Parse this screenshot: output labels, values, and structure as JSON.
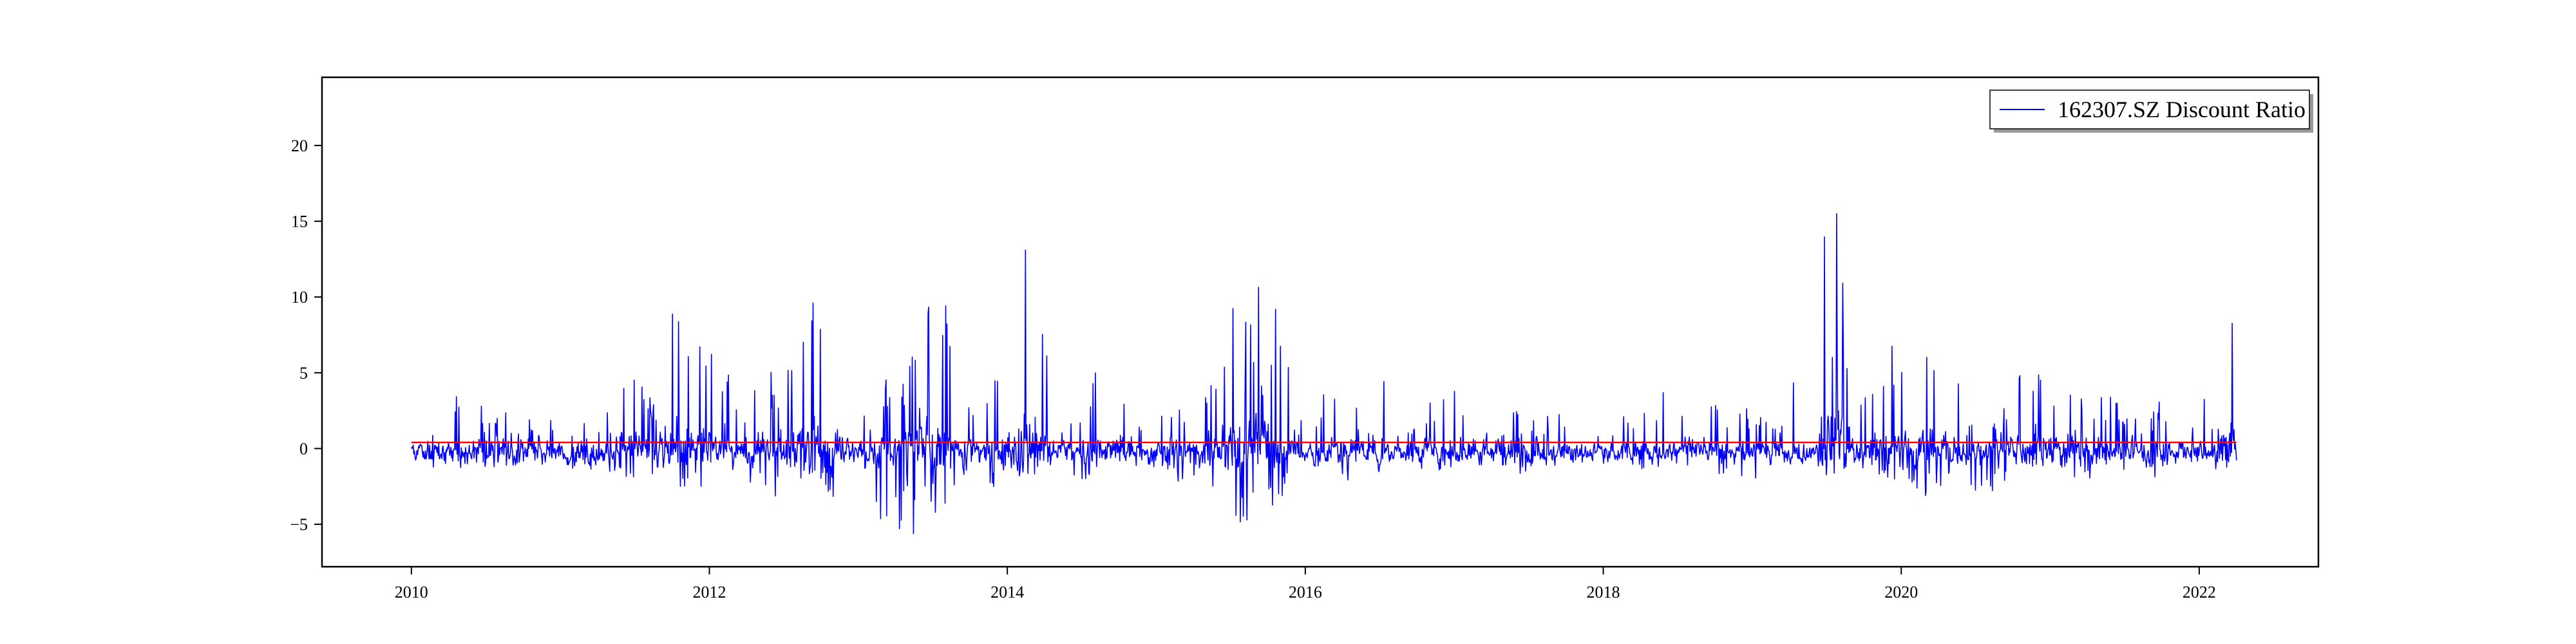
{
  "chart_data": {
    "type": "line",
    "title": "",
    "xlabel": "",
    "ylabel": "",
    "x_range": [
      2009.4,
      2022.8
    ],
    "ylim": [
      -7.8,
      24.5
    ],
    "x_ticks": [
      2010,
      2012,
      2014,
      2016,
      2018,
      2020,
      2022
    ],
    "x_tick_labels": [
      "2010",
      "2012",
      "2014",
      "2016",
      "2018",
      "2020",
      "2022"
    ],
    "y_ticks": [
      -5,
      0,
      5,
      10,
      15,
      20
    ],
    "y_tick_labels": [
      "−5",
      "0",
      "5",
      "10",
      "15",
      "20"
    ],
    "legend": {
      "position": "top-right",
      "entries": [
        "162307.SZ Discount Ratio"
      ]
    },
    "reference_line": {
      "value": 0.4,
      "x_start": 2010.0,
      "x_end": 2022.25,
      "color": "#ff0000"
    },
    "series": [
      {
        "name": "162307.SZ Discount Ratio",
        "color": "#0000ff",
        "x_start": 2010.0,
        "x_end": 2022.25,
        "points": 3000,
        "seed": 162307,
        "baseline": -0.3,
        "noise": 0.6,
        "bursts": [
          {
            "x": 2010.35,
            "width": 0.25,
            "amp": 4.5,
            "dip": -0.6
          },
          {
            "x": 2010.65,
            "width": 0.2,
            "amp": 3.5,
            "dip": -0.5
          },
          {
            "x": 2011.1,
            "width": 0.3,
            "amp": 2.5,
            "dip": -1.0
          },
          {
            "x": 2011.5,
            "width": 0.25,
            "amp": 5.0,
            "dip": -2.0
          },
          {
            "x": 2011.9,
            "width": 0.25,
            "amp": 11.5,
            "dip": -2.5
          },
          {
            "x": 2012.4,
            "width": 0.2,
            "amp": 5.5,
            "dip": -2.5
          },
          {
            "x": 2012.65,
            "width": 0.2,
            "amp": 11.5,
            "dip": -2.0
          },
          {
            "x": 2012.9,
            "width": 0.15,
            "amp": 7.0,
            "dip": -4.0
          },
          {
            "x": 2013.25,
            "width": 0.2,
            "amp": 5.0,
            "dip": -6.0
          },
          {
            "x": 2013.5,
            "width": 0.2,
            "amp": 11.5,
            "dip": -4.0
          },
          {
            "x": 2013.9,
            "width": 0.2,
            "amp": 5.5,
            "dip": -2.0
          },
          {
            "x": 2014.15,
            "width": 0.15,
            "amp": 15.5,
            "dip": -1.5
          },
          {
            "x": 2014.6,
            "width": 0.2,
            "amp": 5.0,
            "dip": -1.5
          },
          {
            "x": 2015.1,
            "width": 0.3,
            "amp": 3.0,
            "dip": -1.5
          },
          {
            "x": 2015.55,
            "width": 0.2,
            "amp": 12.0,
            "dip": -4.5
          },
          {
            "x": 2015.75,
            "width": 0.15,
            "amp": 13.5,
            "dip": -4.0
          },
          {
            "x": 2016.2,
            "width": 0.3,
            "amp": 4.0,
            "dip": -1.5
          },
          {
            "x": 2017.0,
            "width": 0.3,
            "amp": 4.5,
            "dip": -1.0
          },
          {
            "x": 2017.5,
            "width": 0.3,
            "amp": 3.5,
            "dip": -1.0
          },
          {
            "x": 2018.3,
            "width": 0.3,
            "amp": 2.5,
            "dip": -1.0
          },
          {
            "x": 2018.9,
            "width": 0.3,
            "amp": 3.5,
            "dip": -1.5
          },
          {
            "x": 2019.5,
            "width": 0.06,
            "amp": 22.0,
            "dip": -1.5
          },
          {
            "x": 2019.58,
            "width": 0.05,
            "amp": 16.5,
            "dip": -1.0
          },
          {
            "x": 2019.9,
            "width": 0.2,
            "amp": 8.0,
            "dip": -2.0
          },
          {
            "x": 2020.2,
            "width": 0.15,
            "amp": 9.5,
            "dip": -3.5
          },
          {
            "x": 2020.5,
            "width": 0.2,
            "amp": 3.0,
            "dip": -4.0
          },
          {
            "x": 2020.85,
            "width": 0.15,
            "amp": 7.0,
            "dip": -1.5
          },
          {
            "x": 2021.1,
            "width": 0.15,
            "amp": 7.0,
            "dip": -1.0
          },
          {
            "x": 2021.35,
            "width": 0.25,
            "amp": 4.0,
            "dip": -1.5
          },
          {
            "x": 2021.75,
            "width": 0.3,
            "amp": 3.0,
            "dip": -1.5
          },
          {
            "x": 2022.15,
            "width": 0.05,
            "amp": 12.0,
            "dip": -1.0
          },
          {
            "x": 2022.23,
            "width": 0.04,
            "amp": 10.5,
            "dip": -0.5
          }
        ]
      }
    ]
  }
}
